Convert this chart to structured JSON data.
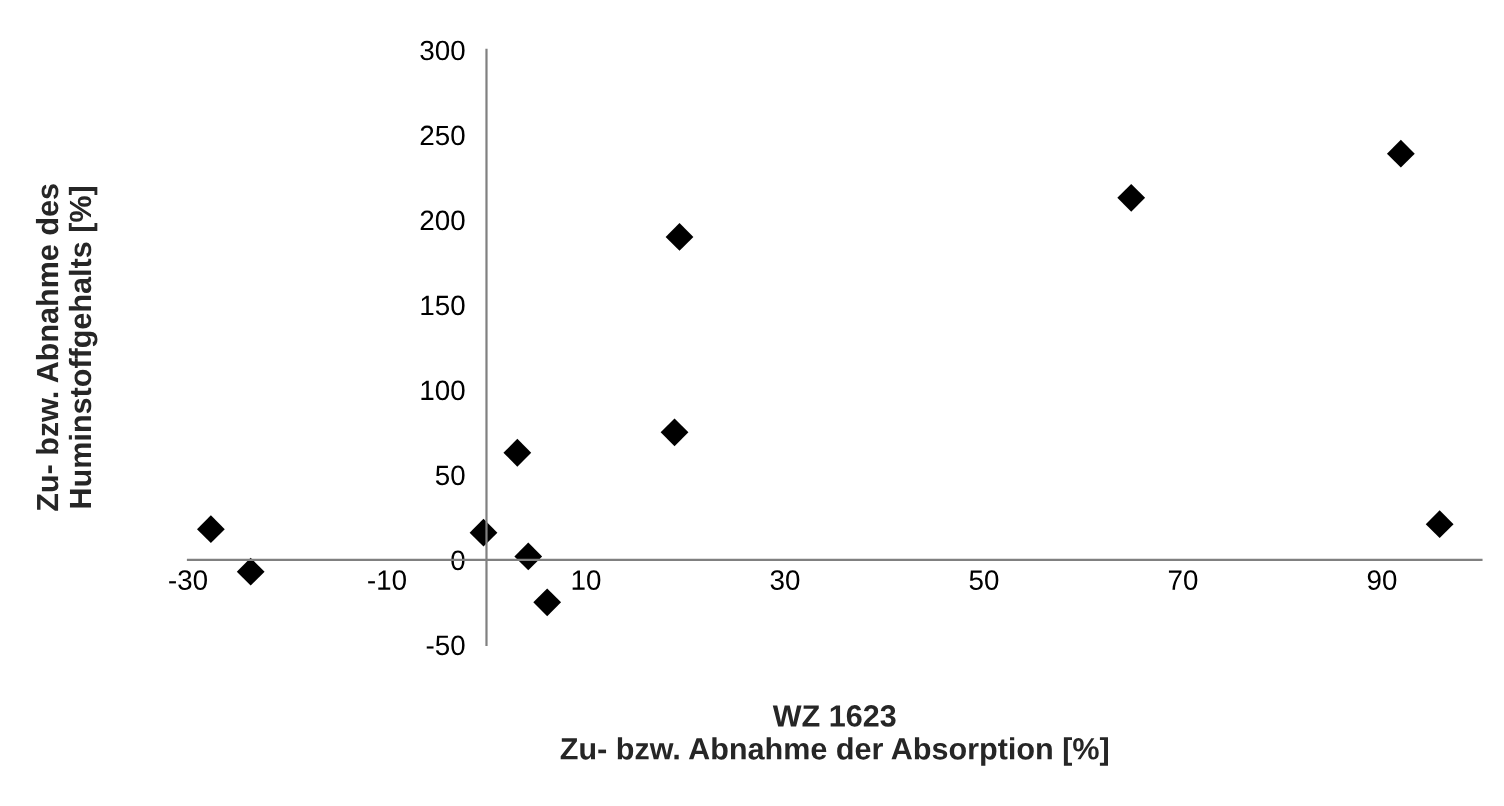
{
  "chart_data": {
    "type": "scatter",
    "xlabel": "WZ 1623\nZu- bzw. Abnahme der Absorption [%]",
    "ylabel": "Zu- bzw. Abnahme des\nHuminstoffgehalts [%]",
    "x": [
      -27.7,
      -23.7,
      -0.3,
      3.1,
      4.2,
      6.1,
      18.9,
      19.4,
      64.8,
      91.9,
      95.8
    ],
    "series": [
      {
        "color": "#000000",
        "values": [
          18,
          -7,
          16,
          63,
          2,
          -25,
          75,
          190,
          213,
          239,
          21
        ]
      }
    ],
    "xlim": [
      -30,
      100
    ],
    "ylim": [
      -50,
      300
    ],
    "xticks": [
      -30,
      -10,
      10,
      30,
      50,
      70,
      90
    ],
    "yticks": [
      -50,
      0,
      50,
      100,
      150,
      200,
      250,
      300
    ],
    "marker": "diamond",
    "grid": false,
    "legend": false
  }
}
